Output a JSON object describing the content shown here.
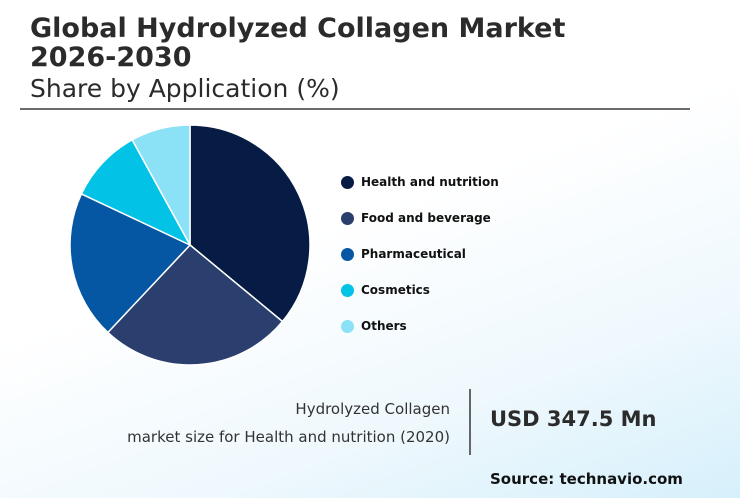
{
  "header": {
    "title": "Global Hydrolyzed Collagen Market 2026-2030",
    "subtitle": "Share by Application (%)"
  },
  "chart_data": {
    "type": "pie",
    "series": [
      {
        "label": "Health and nutrition",
        "value": 36,
        "color": "#061c44"
      },
      {
        "label": "Food and beverage",
        "value": 26,
        "color": "#2b3f6f"
      },
      {
        "label": "Pharmaceutical",
        "value": 20,
        "color": "#0657a3"
      },
      {
        "label": "Cosmetics",
        "value": 10,
        "color": "#02c3e6"
      },
      {
        "label": "Others",
        "value": 8,
        "color": "#8be1f5"
      }
    ],
    "legend": "right"
  },
  "market_size": {
    "label_line1": "Hydrolyzed Collagen",
    "label_line2": "market size for Health and nutrition (2020)",
    "value": "USD 347.5 Mn"
  },
  "source": "Source: technavio.com"
}
